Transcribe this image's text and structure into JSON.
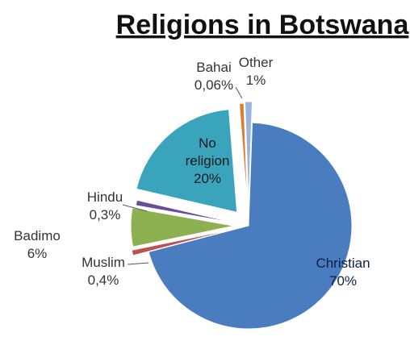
{
  "chart_data": {
    "type": "pie",
    "title": "Religions in Botswana",
    "slices": [
      {
        "label": "Christian",
        "value_text": "70%",
        "value": 70,
        "color": "#4a7cc0"
      },
      {
        "label": "Muslim",
        "value_text": "0,4%",
        "value": 0.4,
        "color": "#c0504d"
      },
      {
        "label": "Badimo",
        "value_text": "6%",
        "value": 6,
        "color": "#8db051"
      },
      {
        "label": "Hindu",
        "value_text": "0,3%",
        "value": 0.3,
        "color": "#6b4c9a"
      },
      {
        "label": "No religion",
        "value_text": "20%",
        "value": 20,
        "color": "#3aa4bd"
      },
      {
        "label": "Bahai",
        "value_text": "0,06%",
        "value": 0.06,
        "color": "#e07b2a"
      },
      {
        "label": "Other",
        "value_text": "1%",
        "value": 1,
        "color": "#98b4e0"
      }
    ],
    "legend": "none"
  }
}
